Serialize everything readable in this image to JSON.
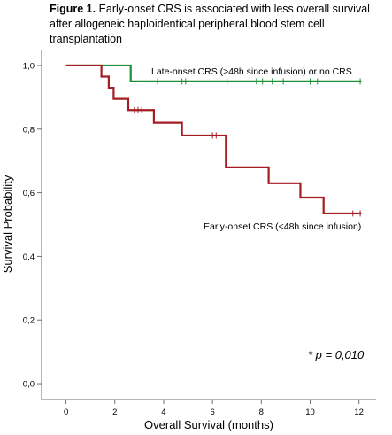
{
  "figure": {
    "label": "Figure 1.",
    "caption": "Early-onset CRS is associated with less overall survival after allogeneic haploidentical peripheral blood stem cell transplantation"
  },
  "chart_data": {
    "type": "line",
    "step": true,
    "xlabel": "Overall Survival (months)",
    "ylabel": "Survival Probability",
    "xlim": [
      -1,
      12.7
    ],
    "ylim": [
      -0.05,
      1.05
    ],
    "xticks": [
      0,
      2,
      4,
      6,
      8,
      10,
      12
    ],
    "xtick_labels": [
      "0",
      "2",
      "4",
      "6",
      "8",
      "10",
      "12"
    ],
    "yticks": [
      0,
      0.2,
      0.4,
      0.6,
      0.8,
      1.0
    ],
    "ytick_labels": [
      "0,0",
      "0,2",
      "0,4",
      "0,6",
      "0,8",
      "1,0"
    ],
    "grid": false,
    "legend": "none",
    "series": [
      {
        "name": "Late-onset CRS (>48h since infusion) or no CRS",
        "color": "#1e9138",
        "points": [
          [
            0,
            1.0
          ],
          [
            2.65,
            1.0
          ],
          [
            2.65,
            0.95
          ],
          [
            12.1,
            0.95
          ]
        ],
        "censored_x": [
          3.75,
          4.75,
          4.9,
          6.6,
          7.8,
          8.05,
          8.45,
          8.9,
          10.0,
          10.3,
          12.05
        ]
      },
      {
        "name": "Early-onset CRS (<48h since infusion)",
        "color": "#a31d22",
        "points": [
          [
            0,
            1.0
          ],
          [
            1.45,
            1.0
          ],
          [
            1.45,
            0.965
          ],
          [
            1.75,
            0.965
          ],
          [
            1.75,
            0.93
          ],
          [
            1.95,
            0.93
          ],
          [
            1.95,
            0.895
          ],
          [
            2.55,
            0.895
          ],
          [
            2.55,
            0.86
          ],
          [
            3.6,
            0.86
          ],
          [
            3.6,
            0.82
          ],
          [
            4.75,
            0.82
          ],
          [
            4.75,
            0.78
          ],
          [
            6.55,
            0.78
          ],
          [
            6.55,
            0.68
          ],
          [
            8.3,
            0.68
          ],
          [
            8.3,
            0.63
          ],
          [
            9.6,
            0.63
          ],
          [
            9.6,
            0.585
          ],
          [
            10.55,
            0.585
          ],
          [
            10.55,
            0.535
          ],
          [
            12.1,
            0.535
          ]
        ],
        "censored_x": [
          2.8,
          2.95,
          3.1,
          6.0,
          6.15,
          11.75,
          12.05
        ]
      }
    ],
    "annotations": [
      "* p = 0,010"
    ]
  }
}
